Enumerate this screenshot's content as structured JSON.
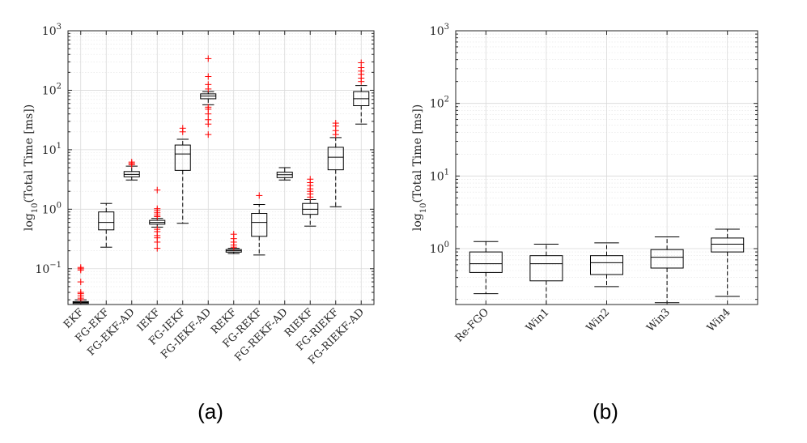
{
  "chart_data": [
    {
      "type": "box",
      "panel_label": "(a)",
      "ylabel": "log10(Total Time [ms])",
      "ylabel_base": "log",
      "ylabel_sub": "10",
      "ylabel_rest": "(Total Time [ms])",
      "yscale": "log",
      "ylim": [
        0.025,
        1000
      ],
      "yticks": [
        {
          "value": 0.1,
          "base": "10",
          "exp": "−1"
        },
        {
          "value": 1,
          "base": "10",
          "exp": "0"
        },
        {
          "value": 10,
          "base": "10",
          "exp": "1"
        },
        {
          "value": 100,
          "base": "10",
          "exp": "2"
        },
        {
          "value": 1000,
          "base": "10",
          "exp": "3"
        }
      ],
      "grid": true,
      "categories": [
        "EKF",
        "FG-EKF",
        "FG-EKF-AD",
        "IEKF",
        "FG-IEKF",
        "FG-IEKF-AD",
        "REKF",
        "FG-REKF",
        "FG-REKF-AD",
        "RIEKF",
        "FG-RIEKF",
        "FG-RIEKF-AD"
      ],
      "boxes": [
        {
          "whislo": 0.025,
          "q1": 0.026,
          "med": 0.027,
          "q3": 0.028,
          "whishi": 0.03,
          "fliers": [
            0.03,
            0.032,
            0.035,
            0.038,
            0.04,
            0.06,
            0.095,
            0.1,
            0.105
          ]
        },
        {
          "whislo": 0.23,
          "q1": 0.45,
          "med": 0.6,
          "q3": 0.9,
          "whishi": 1.25,
          "fliers": []
        },
        {
          "whislo": 3.1,
          "q1": 3.5,
          "med": 3.85,
          "q3": 4.3,
          "whishi": 5.3,
          "fliers": [
            5.6,
            5.9,
            6.2
          ]
        },
        {
          "whislo": 0.5,
          "q1": 0.56,
          "med": 0.6,
          "q3": 0.65,
          "whishi": 0.7,
          "fliers": [
            0.22,
            0.28,
            0.33,
            0.36,
            0.42,
            0.46,
            0.75,
            0.8,
            0.87,
            0.95,
            1.02,
            2.1
          ]
        },
        {
          "whislo": 0.58,
          "q1": 4.5,
          "med": 8.5,
          "q3": 12,
          "whishi": 15,
          "fliers": [
            20,
            23
          ]
        },
        {
          "whislo": 57,
          "q1": 72,
          "med": 80,
          "q3": 87,
          "whishi": 95,
          "fliers": [
            18,
            27,
            32,
            40,
            48,
            52,
            105,
            125,
            170,
            340
          ]
        },
        {
          "whislo": 0.18,
          "q1": 0.19,
          "med": 0.2,
          "q3": 0.21,
          "whishi": 0.22,
          "fliers": [
            0.23,
            0.25,
            0.28,
            0.32,
            0.38
          ]
        },
        {
          "whislo": 0.17,
          "q1": 0.35,
          "med": 0.6,
          "q3": 0.85,
          "whishi": 1.2,
          "fliers": [
            1.7
          ]
        },
        {
          "whislo": 3.1,
          "q1": 3.4,
          "med": 3.8,
          "q3": 4.2,
          "whishi": 5,
          "fliers": []
        },
        {
          "whislo": 0.52,
          "q1": 0.82,
          "med": 1.0,
          "q3": 1.25,
          "whishi": 1.45,
          "fliers": [
            1.6,
            1.8,
            2.0,
            2.2,
            2.5,
            2.8,
            3.2
          ]
        },
        {
          "whislo": 1.1,
          "q1": 4.6,
          "med": 7.5,
          "q3": 11,
          "whishi": 16,
          "fliers": [
            18,
            21,
            25,
            28
          ]
        },
        {
          "whislo": 27,
          "q1": 55,
          "med": 72,
          "q3": 95,
          "whishi": 120,
          "fliers": [
            140,
            160,
            185,
            210,
            240,
            290
          ]
        }
      ]
    },
    {
      "type": "box",
      "panel_label": "(b)",
      "ylabel": "log10(Total Time [ms])",
      "ylabel_base": "log",
      "ylabel_sub": "10",
      "ylabel_rest": "(Total Time [ms])",
      "yscale": "log",
      "ylim": [
        0.17,
        1000
      ],
      "yticks": [
        {
          "value": 1,
          "base": "10",
          "exp": "0"
        },
        {
          "value": 10,
          "base": "10",
          "exp": "1"
        },
        {
          "value": 100,
          "base": "10",
          "exp": "2"
        },
        {
          "value": 1000,
          "base": "10",
          "exp": "3"
        }
      ],
      "grid": true,
      "categories": [
        "Re-FGO",
        "Win1",
        "Win2",
        "Win3",
        "Win4"
      ],
      "boxes": [
        {
          "whislo": 0.24,
          "q1": 0.47,
          "med": 0.62,
          "q3": 0.9,
          "whishi": 1.25,
          "fliers": []
        },
        {
          "whislo": 0.17,
          "q1": 0.36,
          "med": 0.62,
          "q3": 0.8,
          "whishi": 1.15,
          "fliers": []
        },
        {
          "whislo": 0.3,
          "q1": 0.44,
          "med": 0.64,
          "q3": 0.8,
          "whishi": 1.2,
          "fliers": []
        },
        {
          "whislo": 0.18,
          "q1": 0.54,
          "med": 0.76,
          "q3": 0.97,
          "whishi": 1.45,
          "fliers": []
        },
        {
          "whislo": 0.22,
          "q1": 0.9,
          "med": 1.15,
          "q3": 1.4,
          "whishi": 1.85,
          "fliers": []
        }
      ]
    }
  ]
}
